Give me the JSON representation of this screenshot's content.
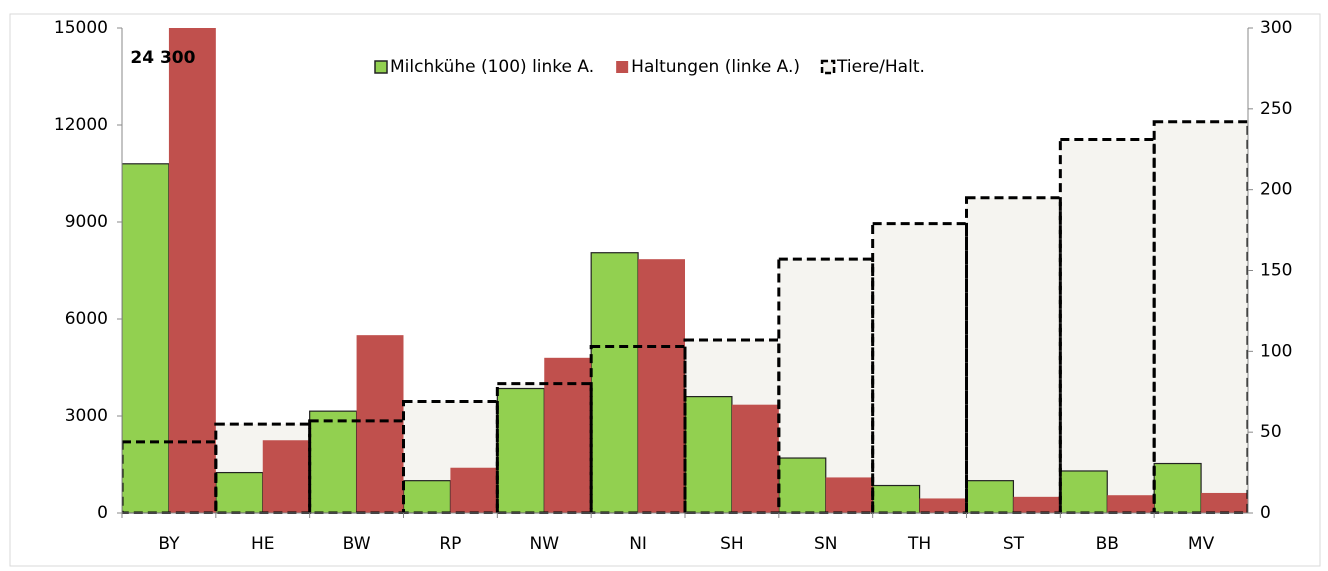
{
  "chart_data": {
    "type": "bar",
    "categories": [
      "BY",
      "HE",
      "BW",
      "RP",
      "NW",
      "NI",
      "SH",
      "SN",
      "TH",
      "ST",
      "BB",
      "MV"
    ],
    "series": [
      {
        "name": "Milchkühe (100) linke A.",
        "color": "#92d050",
        "values": [
          10800,
          1250,
          3150,
          1000,
          3850,
          8050,
          3600,
          1700,
          850,
          1000,
          1300,
          1530
        ]
      },
      {
        "name": "Haltungen (linke A.)",
        "color": "#c0504d",
        "values": [
          24300,
          2250,
          5500,
          1400,
          4800,
          7850,
          3350,
          1100,
          450,
          500,
          550,
          620
        ],
        "value_labels": [
          "24 300",
          null,
          null,
          null,
          null,
          null,
          null,
          null,
          null,
          null,
          null,
          null
        ]
      },
      {
        "name": "Tiere/Halt.",
        "color": "#f5f4f0",
        "axis": "y2",
        "values": [
          44,
          55,
          57,
          69,
          80,
          103,
          107,
          157,
          179,
          195,
          231,
          242
        ]
      }
    ],
    "ylim": [
      0,
      15000
    ],
    "yticks": [
      0,
      3000,
      6000,
      9000,
      12000,
      15000
    ],
    "y2lim": [
      0,
      300
    ],
    "y2ticks": [
      0,
      50,
      100,
      150,
      200,
      250,
      300
    ]
  }
}
